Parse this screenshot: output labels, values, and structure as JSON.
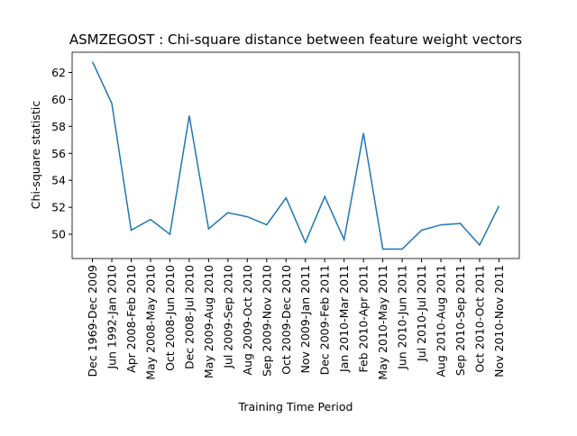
{
  "chart_data": {
    "type": "line",
    "title": "ASMZEGOST : Chi-square distance between feature weight vectors",
    "x_label": "Training Time Period",
    "y_label": "Chi-square statistic",
    "categories": [
      "Dec 1969-Dec 2009",
      "Jun 1992-Jan 2010",
      "Apr 2008-Feb 2010",
      "May 2008-May 2010",
      "Oct 2008-Jun 2010",
      "Dec 2008-Jul 2010",
      "May 2009-Aug 2010",
      "Jul 2009-Sep 2010",
      "Aug 2009-Oct 2010",
      "Sep 2009-Nov 2010",
      "Oct 2009-Dec 2010",
      "Nov 2009-Jan 2011",
      "Dec 2009-Feb 2011",
      "Jan 2010-Mar 2011",
      "Feb 2010-Apr 2011",
      "May 2010-May 2011",
      "Jun 2010-Jun 2011",
      "Jul 2010-Jul 2011",
      "Aug 2010-Aug 2011",
      "Sep 2010-Sep 2011",
      "Oct 2010-Oct 2011",
      "Nov 2010-Nov 2011"
    ],
    "series": [
      {
        "name": "Chi-square",
        "color": "#1f77b4",
        "values": [
          62.8,
          59.7,
          50.3,
          51.1,
          50.0,
          58.8,
          50.4,
          51.6,
          51.3,
          50.7,
          52.7,
          49.4,
          52.8,
          49.6,
          57.5,
          48.9,
          48.9,
          50.3,
          50.7,
          50.8,
          49.2,
          52.1
        ]
      }
    ],
    "ylim": [
      48.2,
      63.5
    ],
    "yticks": [
      50,
      52,
      54,
      56,
      58,
      60,
      62
    ],
    "grid": false
  }
}
